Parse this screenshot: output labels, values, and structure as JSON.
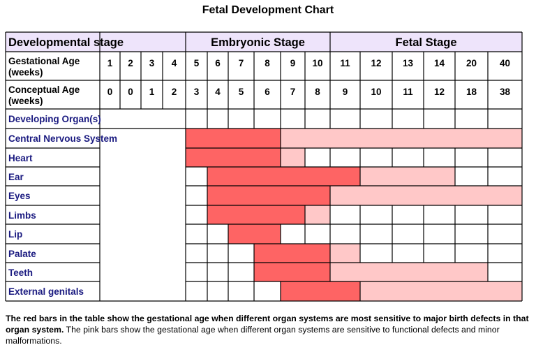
{
  "title": "Fetal Development Chart",
  "header": {
    "stage_label": "Developmental stage",
    "embryonic_label": "Embryonic Stage",
    "fetal_label": "Fetal Stage"
  },
  "gestational": {
    "label_line1": "Gestational  Age",
    "label_line2": "(weeks)",
    "weeks": [
      "1",
      "2",
      "3",
      "4",
      "5",
      "6",
      "7",
      "8",
      "9",
      "10",
      "11",
      "12",
      "13",
      "14",
      "20",
      "40"
    ]
  },
  "conceptual": {
    "label_line1": "Conceptual  Age",
    "label_line2": "(weeks)",
    "weeks": [
      "0",
      "0",
      "1",
      "2",
      "3",
      "4",
      "5",
      "6",
      "7",
      "8",
      "9",
      "10",
      "11",
      "12",
      "18",
      "38"
    ]
  },
  "organs_header": "Developing Organ(s)",
  "organs": [
    {
      "name": "Central Nervous System",
      "red": [
        4,
        7
      ],
      "pink": [
        8,
        15
      ]
    },
    {
      "name": "Heart",
      "red": [
        4,
        7
      ],
      "pink": [
        8,
        8
      ]
    },
    {
      "name": "Ear",
      "red": [
        5,
        10
      ],
      "pink": [
        11,
        13
      ]
    },
    {
      "name": "Eyes",
      "red": [
        5,
        9
      ],
      "pink": [
        10,
        15
      ]
    },
    {
      "name": "Limbs",
      "red": [
        5,
        8
      ],
      "pink": [
        9,
        9
      ]
    },
    {
      "name": "Lip",
      "red": [
        6,
        7
      ],
      "pink": null
    },
    {
      "name": "Palate",
      "red": [
        7,
        9
      ],
      "pink": [
        10,
        10
      ]
    },
    {
      "name": "Teeth",
      "red": [
        7,
        9
      ],
      "pink": [
        10,
        14
      ]
    },
    {
      "name": "External genitals",
      "red": [
        8,
        10
      ],
      "pink": [
        11,
        15
      ]
    }
  ],
  "colors": {
    "red": "#fe6464",
    "pink": "#ffc8c8",
    "header_bg": "#eee4fb",
    "organ_text": "#1a1a80",
    "grid": "#000000"
  },
  "footnote": {
    "bold": "The red bars in the table  show the gestational age when different organ systems are most sensitive to major birth defects in that organ system.",
    "normal": " The pink bars show the gestational age when different organ systems are sensitive to functional defects and minor malformations."
  }
}
